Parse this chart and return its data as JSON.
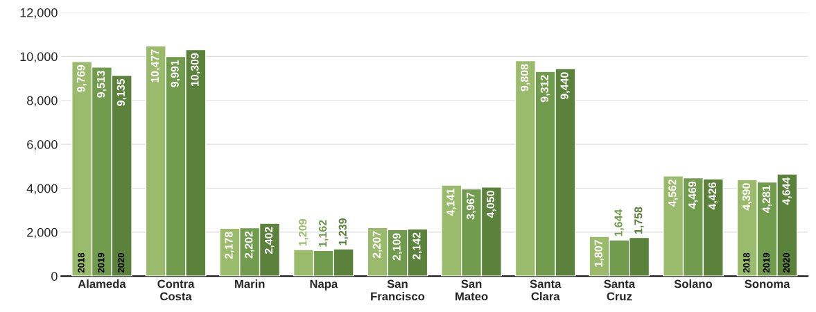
{
  "chart_data": {
    "type": "bar",
    "categories": [
      "Alameda",
      "Contra Costa",
      "Marin",
      "Napa",
      "San Francisco",
      "San Mateo",
      "Santa Clara",
      "Santa Cruz",
      "Solano",
      "Sonoma"
    ],
    "series": [
      {
        "name": "2018",
        "color": "#9bbb6c",
        "values": [
          9769,
          10477,
          2178,
          1209,
          2207,
          4141,
          9808,
          1807,
          4562,
          4390
        ],
        "value_labels": [
          "9,769",
          "10,477",
          "2,178",
          "1,209",
          "2,207",
          "4,141",
          "9,808",
          "1,807",
          "4,562",
          "4,390"
        ]
      },
      {
        "name": "2019",
        "color": "#719b4d",
        "values": [
          9513,
          9991,
          2202,
          1162,
          2109,
          3967,
          9312,
          1644,
          4469,
          4281
        ],
        "value_labels": [
          "9,513",
          "9,991",
          "2,202",
          "1,162",
          "2,109",
          "3,967",
          "9,312",
          "1,644",
          "4,469",
          "4,281"
        ]
      },
      {
        "name": "2020",
        "color": "#5a823a",
        "values": [
          9135,
          10309,
          2402,
          1239,
          2142,
          4050,
          9440,
          1758,
          4426,
          4644
        ],
        "value_labels": [
          "9,135",
          "10,309",
          "2,402",
          "1,239",
          "2,142",
          "4,050",
          "9,440",
          "1,758",
          "4,426",
          "4,644"
        ]
      }
    ],
    "ylim": [
      0,
      12000
    ],
    "yticks": [
      0,
      {
        "value": 2000,
        "label": "2,000"
      },
      {
        "value": 4000,
        "label": "4,000"
      },
      {
        "value": 6000,
        "label": "6,000"
      },
      {
        "value": 8000,
        "label": "8,000"
      },
      {
        "value": 10000,
        "label": "10,000"
      },
      {
        "value": 12000,
        "label": "12,000"
      }
    ],
    "grid": "y",
    "legend": false
  }
}
